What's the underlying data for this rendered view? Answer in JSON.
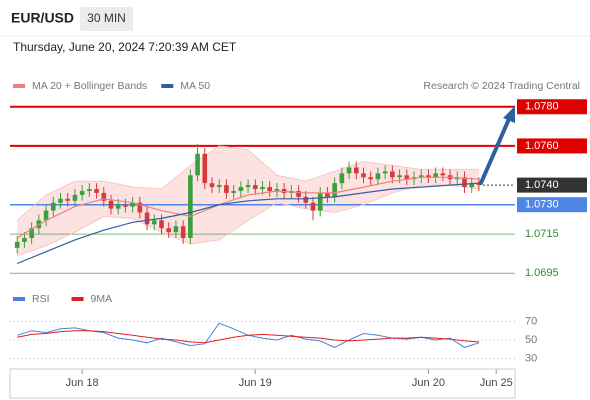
{
  "header": {
    "symbol": "EUR/USD",
    "interval": "30 MIN",
    "timestamp": "Thursday, June 20, 2024 7:20:39 AM CET"
  },
  "chart_data": [
    {
      "type": "candlestick",
      "credit": "Research © 2024 Trading Central",
      "up_color": "#3aa13a",
      "down_color": "#d83a3a",
      "xlim": [
        -1,
        69
      ],
      "xticks": [
        {
          "value": 9,
          "label": "Jun 18"
        },
        {
          "value": 33,
          "label": "Jun 19"
        },
        {
          "value": 57,
          "label": "Jun 20"
        },
        {
          "value": 66.4,
          "label": "Jun 25"
        }
      ],
      "ylim": [
        1.0689,
        1.0786
      ],
      "open": [
        1.0708,
        1.0711,
        1.0713,
        1.0718,
        1.0722,
        1.0727,
        1.0731,
        1.0733,
        1.0732,
        1.0735,
        1.0737,
        1.0738,
        1.0736,
        1.0732,
        1.0728,
        1.073,
        1.0729,
        1.0731,
        1.0726,
        1.072,
        1.0722,
        1.0718,
        1.0716,
        1.0719,
        1.0713,
        1.0745,
        1.0756,
        1.0741,
        1.0739,
        1.074,
        1.0736,
        1.0737,
        1.0739,
        1.074,
        1.0738,
        1.0739,
        1.0737,
        1.0738,
        1.0736,
        1.0737,
        1.0734,
        1.0731,
        1.0727,
        1.0736,
        1.0734,
        1.0741,
        1.0746,
        1.0749,
        1.0746,
        1.0744,
        1.0743,
        1.0746,
        1.0747,
        1.0744,
        1.0745,
        1.0743,
        1.0744,
        1.0745,
        1.0744,
        1.0746,
        1.0745,
        1.0743,
        1.0744,
        1.0739,
        1.0741
      ],
      "high": [
        1.0714,
        1.0716,
        1.0721,
        1.0725,
        1.073,
        1.0734,
        1.0736,
        1.0736,
        1.0738,
        1.074,
        1.0741,
        1.0741,
        1.0739,
        1.0735,
        1.0733,
        1.0733,
        1.0734,
        1.0734,
        1.0729,
        1.0725,
        1.0725,
        1.0721,
        1.0722,
        1.0722,
        1.0748,
        1.0761,
        1.0759,
        1.0744,
        1.0743,
        1.0743,
        1.074,
        1.0742,
        1.0743,
        1.0743,
        1.0742,
        1.0742,
        1.0741,
        1.0741,
        1.074,
        1.074,
        1.0737,
        1.0734,
        1.0739,
        1.0739,
        1.0744,
        1.0749,
        1.0752,
        1.0752,
        1.0749,
        1.0747,
        1.0749,
        1.075,
        1.075,
        1.0748,
        1.0748,
        1.0747,
        1.0748,
        1.0748,
        1.0749,
        1.0749,
        1.0748,
        1.0747,
        1.0747,
        1.0744,
        1.0744
      ],
      "low": [
        1.0705,
        1.0708,
        1.071,
        1.0715,
        1.0719,
        1.0724,
        1.0728,
        1.0729,
        1.0729,
        1.0732,
        1.0734,
        1.0733,
        1.0729,
        1.0725,
        1.0725,
        1.0726,
        1.0726,
        1.0723,
        1.0717,
        1.0717,
        1.0715,
        1.0713,
        1.0713,
        1.071,
        1.071,
        1.0742,
        1.0738,
        1.0736,
        1.0736,
        1.0733,
        1.0733,
        1.0734,
        1.0736,
        1.0735,
        1.0735,
        1.0734,
        1.0734,
        1.0733,
        1.0733,
        1.0731,
        1.0728,
        1.0722,
        1.0724,
        1.0731,
        1.0731,
        1.0738,
        1.0743,
        1.0743,
        1.0741,
        1.074,
        1.074,
        1.0743,
        1.0741,
        1.0741,
        1.074,
        1.074,
        1.0741,
        1.0741,
        1.0741,
        1.0742,
        1.074,
        1.074,
        1.0736,
        1.0736,
        1.0737
      ],
      "close": [
        1.0711,
        1.0713,
        1.0718,
        1.0722,
        1.0727,
        1.0731,
        1.0733,
        1.0732,
        1.0735,
        1.0737,
        1.0738,
        1.0736,
        1.0732,
        1.0728,
        1.073,
        1.0729,
        1.0731,
        1.0726,
        1.072,
        1.0722,
        1.0718,
        1.0716,
        1.0719,
        1.0713,
        1.0745,
        1.0756,
        1.0741,
        1.0739,
        1.074,
        1.0736,
        1.0737,
        1.0739,
        1.074,
        1.0738,
        1.0739,
        1.0737,
        1.0738,
        1.0736,
        1.0737,
        1.0734,
        1.0731,
        1.0727,
        1.0736,
        1.0734,
        1.0741,
        1.0746,
        1.0749,
        1.0746,
        1.0744,
        1.0743,
        1.0746,
        1.0747,
        1.0744,
        1.0745,
        1.0743,
        1.0744,
        1.0745,
        1.0744,
        1.0746,
        1.0745,
        1.0743,
        1.0744,
        1.0739,
        1.0741,
        1.074
      ],
      "series": [
        {
          "name": "MA 20 + Bollinger Bands",
          "color": "#f08080",
          "band_color": "#fde2e2",
          "x": [
            0,
            4,
            8,
            12,
            16,
            20,
            24,
            28,
            32,
            36,
            40,
            44,
            48,
            52,
            56,
            60,
            64
          ],
          "values": [
            1.0713,
            1.0722,
            1.0729,
            1.0733,
            1.0731,
            1.0727,
            1.0724,
            1.073,
            1.0735,
            1.0737,
            1.0736,
            1.0736,
            1.0739,
            1.0742,
            1.0744,
            1.0744,
            1.0743
          ],
          "upper": [
            1.0722,
            1.0735,
            1.0742,
            1.0742,
            1.0739,
            1.0738,
            1.075,
            1.076,
            1.0758,
            1.0745,
            1.0742,
            1.0747,
            1.0752,
            1.075,
            1.0748,
            1.0748,
            1.0748
          ],
          "lower": [
            1.0704,
            1.0709,
            1.0716,
            1.0724,
            1.0723,
            1.0716,
            1.071,
            1.0712,
            1.0722,
            1.0731,
            1.0728,
            1.0726,
            1.073,
            1.0736,
            1.074,
            1.074,
            1.0738
          ]
        },
        {
          "name": "MA 50",
          "color": "#2f5f9f",
          "x": [
            0,
            4,
            8,
            12,
            16,
            20,
            24,
            28,
            32,
            36,
            40,
            44,
            48,
            52,
            56,
            60,
            64
          ],
          "values": [
            1.07,
            1.0706,
            1.0712,
            1.0717,
            1.0721,
            1.0723,
            1.0726,
            1.073,
            1.0732,
            1.0733,
            1.0733,
            1.0734,
            1.0736,
            1.0738,
            1.0739,
            1.074,
            1.0741
          ]
        }
      ],
      "levels": [
        {
          "value": 1.078,
          "label": "1.0780",
          "color": "#e00000",
          "style": "box"
        },
        {
          "value": 1.076,
          "label": "1.0760",
          "color": "#e00000",
          "style": "box"
        },
        {
          "value": 1.073,
          "label": "1.0730",
          "color": "#4d86e6",
          "style": "box"
        },
        {
          "value": 1.0715,
          "label": "1.0715",
          "color": "#2e8b2e",
          "style": "text"
        },
        {
          "value": 1.0695,
          "label": "1.0695",
          "color": "#2e8b2e",
          "style": "text"
        }
      ],
      "last": {
        "value": 1.074,
        "label": "1.0740",
        "color": "#333333"
      }
    },
    {
      "type": "line",
      "xlim": [
        -1,
        69
      ],
      "ylim": [
        21,
        79
      ],
      "yticks": [
        70,
        50,
        30
      ],
      "x": [
        0,
        2,
        4,
        6,
        8,
        10,
        12,
        14,
        16,
        18,
        20,
        22,
        24,
        26,
        28,
        30,
        32,
        34,
        36,
        38,
        40,
        42,
        44,
        46,
        48,
        50,
        52,
        54,
        56,
        58,
        60,
        62,
        64
      ],
      "series": [
        {
          "name": "RSI",
          "color": "#4d7fd6",
          "values": [
            55,
            60,
            58,
            62,
            63,
            60,
            58,
            52,
            50,
            47,
            52,
            48,
            44,
            46,
            68,
            62,
            55,
            52,
            50,
            55,
            51,
            49,
            42,
            50,
            57,
            55,
            52,
            51,
            53,
            50,
            52,
            42,
            47
          ]
        },
        {
          "name": "9MA",
          "color": "#e02020",
          "values": [
            53,
            56,
            57,
            59,
            60,
            60,
            59,
            57,
            55,
            53,
            51,
            50,
            48,
            47,
            50,
            53,
            55,
            56,
            55,
            54,
            53,
            52,
            50,
            49,
            50,
            51,
            52,
            52,
            53,
            52,
            51,
            49,
            48
          ]
        }
      ]
    }
  ]
}
